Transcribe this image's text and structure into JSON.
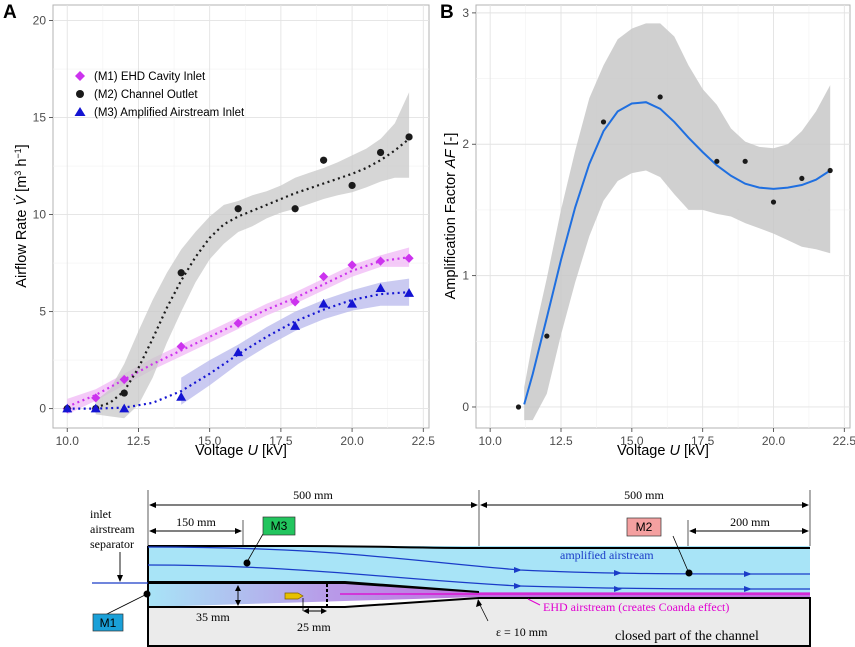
{
  "panel_a": {
    "letter": "A",
    "chart_data": {
      "type": "scatter",
      "xlabel": "Voltage",
      "xlabel_var": "U",
      "xlabel_unit": "[kV]",
      "ylabel": "Airflow Rate",
      "ylabel_var": "V̇",
      "ylabel_unit_open": "[m",
      "ylabel_unit_mid": " h",
      "ylabel_unit_close": "]",
      "ylabel_sup1": "3",
      "ylabel_sup2": "−1",
      "xlim": [
        9.5,
        22.7
      ],
      "ylim": [
        -1,
        20.8
      ],
      "xticks": [
        10.0,
        12.5,
        15.0,
        17.5,
        20.0,
        22.5
      ],
      "xtick_labels": [
        "10.0",
        "12.5",
        "15.0",
        "17.5",
        "20.0",
        "22.5"
      ],
      "yticks": [
        0,
        5,
        10,
        15,
        20
      ],
      "ytick_labels": [
        "0",
        "5",
        "10",
        "15",
        "20"
      ],
      "grid": true,
      "legend_position": "top-left",
      "series": [
        {
          "name": "(M1) EHD Cavity Inlet",
          "marker": "diamond",
          "color": "#cc33ee",
          "band_color": "#f0b8f5",
          "x": [
            10,
            11,
            12,
            14,
            16,
            18,
            19,
            20,
            21,
            22
          ],
          "y": [
            0.0,
            0.55,
            1.5,
            3.2,
            4.4,
            5.5,
            6.8,
            7.4,
            7.6,
            7.75
          ],
          "fit_x": [
            10,
            11,
            12,
            13,
            14,
            15,
            16,
            17,
            18,
            19,
            20,
            21,
            22
          ],
          "fit_y": [
            0.1,
            0.7,
            1.5,
            2.3,
            3.0,
            3.7,
            4.4,
            5.1,
            5.7,
            6.4,
            7.1,
            7.6,
            7.8
          ],
          "band_lo": [
            -0.3,
            0.4,
            1.2,
            2.0,
            2.7,
            3.4,
            4.1,
            4.8,
            5.4,
            6.1,
            6.8,
            7.3,
            7.3
          ],
          "band_hi": [
            0.5,
            1.0,
            1.8,
            2.6,
            3.3,
            4.0,
            4.7,
            5.4,
            6.0,
            6.7,
            7.4,
            7.9,
            8.3
          ]
        },
        {
          "name": "(M2) Channel Outlet",
          "marker": "circle",
          "color": "#1a1a1a",
          "band_color": "#c8c8c8",
          "x": [
            10,
            11,
            12,
            14,
            16,
            18,
            19,
            20,
            21,
            22
          ],
          "y": [
            0.0,
            0.0,
            0.8,
            7.0,
            10.3,
            10.3,
            12.8,
            11.5,
            13.2,
            14.0
          ],
          "fit_x": [
            11,
            11.5,
            12,
            12.5,
            13,
            13.5,
            14,
            14.5,
            15,
            15.5,
            16,
            16.5,
            17,
            17.5,
            18,
            18.5,
            19,
            19.5,
            20,
            20.5,
            21,
            21.5,
            22
          ],
          "fit_y": [
            0.05,
            0.3,
            0.9,
            2.1,
            3.6,
            5.2,
            6.6,
            7.8,
            8.8,
            9.5,
            9.9,
            10.2,
            10.5,
            10.8,
            11.1,
            11.35,
            11.6,
            11.85,
            12.1,
            12.4,
            12.8,
            13.3,
            13.9
          ],
          "band_lo": [
            -0.3,
            -0.4,
            -0.5,
            0.2,
            1.6,
            3.4,
            5.0,
            6.5,
            7.7,
            8.5,
            9.1,
            9.4,
            9.8,
            10.1,
            10.3,
            10.55,
            10.8,
            11.0,
            11.15,
            11.4,
            11.7,
            11.9,
            11.9
          ],
          "band_hi": [
            0.4,
            1.0,
            2.3,
            4.0,
            5.6,
            7.0,
            8.2,
            9.1,
            9.9,
            10.5,
            10.7,
            11.0,
            11.2,
            11.5,
            11.9,
            12.15,
            12.4,
            12.7,
            13.05,
            13.4,
            13.9,
            14.7,
            16.3
          ]
        },
        {
          "name": "(M3) Amplified Airstream Inlet",
          "marker": "triangle",
          "color": "#1414d2",
          "band_color": "#b8b8ec",
          "x": [
            10,
            11,
            12,
            14,
            16,
            18,
            19,
            20,
            21,
            22
          ],
          "y": [
            0.0,
            0.0,
            0.0,
            0.6,
            2.9,
            4.25,
            5.4,
            5.4,
            6.2,
            5.95
          ],
          "fit_x": [
            10,
            11,
            12,
            13,
            14,
            15,
            16,
            17,
            18,
            19,
            20,
            21,
            22
          ],
          "fit_y": [
            0.0,
            0.0,
            0.05,
            0.3,
            0.9,
            1.8,
            2.8,
            3.7,
            4.5,
            5.1,
            5.6,
            5.9,
            6.0
          ],
          "band_lo": [
            null,
            null,
            null,
            null,
            0.2,
            1.2,
            2.3,
            3.2,
            4.0,
            4.6,
            5.05,
            5.3,
            5.3
          ],
          "band_hi": [
            null,
            null,
            null,
            null,
            1.6,
            2.5,
            3.3,
            4.2,
            5.0,
            5.6,
            6.1,
            6.5,
            6.7
          ]
        }
      ]
    }
  },
  "panel_b": {
    "letter": "B",
    "chart_data": {
      "type": "scatter",
      "xlabel": "Voltage",
      "xlabel_var": "U",
      "xlabel_unit": "[kV]",
      "ylabel": "Amplification Factor",
      "ylabel_var": "AF",
      "ylabel_unit": "[-]",
      "xlim": [
        9.5,
        22.7
      ],
      "ylim": [
        -0.16,
        3.06
      ],
      "xticks": [
        10.0,
        12.5,
        15.0,
        17.5,
        20.0,
        22.5
      ],
      "xtick_labels": [
        "10.0",
        "12.5",
        "15.0",
        "17.5",
        "20.0",
        "22.5"
      ],
      "yticks": [
        0,
        1,
        2,
        3
      ],
      "ytick_labels": [
        "0",
        "1",
        "2",
        "3"
      ],
      "grid": true,
      "series": [
        {
          "name": "AF",
          "marker": "circle",
          "color": "#1a1a1a",
          "x": [
            11,
            12,
            14,
            16,
            18,
            19,
            20,
            21,
            22
          ],
          "y": [
            0.0,
            0.54,
            2.17,
            2.36,
            1.87,
            1.87,
            1.56,
            1.74,
            1.8
          ],
          "fit_color": "#1f6fe0",
          "fit_x": [
            11.2,
            11.5,
            12,
            12.5,
            13,
            13.5,
            14,
            14.5,
            15,
            15.5,
            16,
            16.5,
            17,
            17.5,
            18,
            18.5,
            19,
            19.5,
            20,
            20.5,
            21,
            21.5,
            22
          ],
          "fit_y": [
            0.02,
            0.25,
            0.68,
            1.12,
            1.52,
            1.85,
            2.1,
            2.25,
            2.31,
            2.32,
            2.27,
            2.17,
            2.05,
            1.94,
            1.84,
            1.76,
            1.7,
            1.67,
            1.66,
            1.67,
            1.69,
            1.73,
            1.8
          ],
          "band_lo": [
            -0.1,
            -0.1,
            0.1,
            0.55,
            0.95,
            1.3,
            1.57,
            1.72,
            1.78,
            1.8,
            1.75,
            1.62,
            1.5,
            1.5,
            1.47,
            1.45,
            1.4,
            1.36,
            1.32,
            1.27,
            1.22,
            1.2,
            1.17
          ],
          "band_hi": [
            0.15,
            0.5,
            0.98,
            1.5,
            1.95,
            2.35,
            2.6,
            2.8,
            2.88,
            2.92,
            2.92,
            2.82,
            2.6,
            2.42,
            2.3,
            2.12,
            2.02,
            1.98,
            1.97,
            2.0,
            2.1,
            2.25,
            2.45
          ]
        }
      ]
    }
  },
  "diagram": {
    "dim_500_left": "500 mm",
    "dim_500_right": "500 mm",
    "dim_150": "150 mm",
    "dim_200": "200 mm",
    "dim_35": "35 mm",
    "dim_25": "25 mm",
    "epsilon": "ε = 10 mm",
    "inlet_label_1": "inlet",
    "inlet_label_2": "airstream",
    "inlet_label_3": "separator",
    "m1": "M1",
    "m2": "M2",
    "m3": "M3",
    "amplified": "amplified airstream",
    "ehd": "EHD airstream (creates Coanda effect)",
    "closed": "closed part of the channel",
    "colors": {
      "channel_fill": "#a8e4f7",
      "closed_fill": "#ebebeb",
      "m1_box": "#1aa0d8",
      "m2_box": "#f4a0a0",
      "m3_box": "#22c55e",
      "flow_line": "#1a3cc8",
      "ehd_color": "#e000d0"
    }
  }
}
